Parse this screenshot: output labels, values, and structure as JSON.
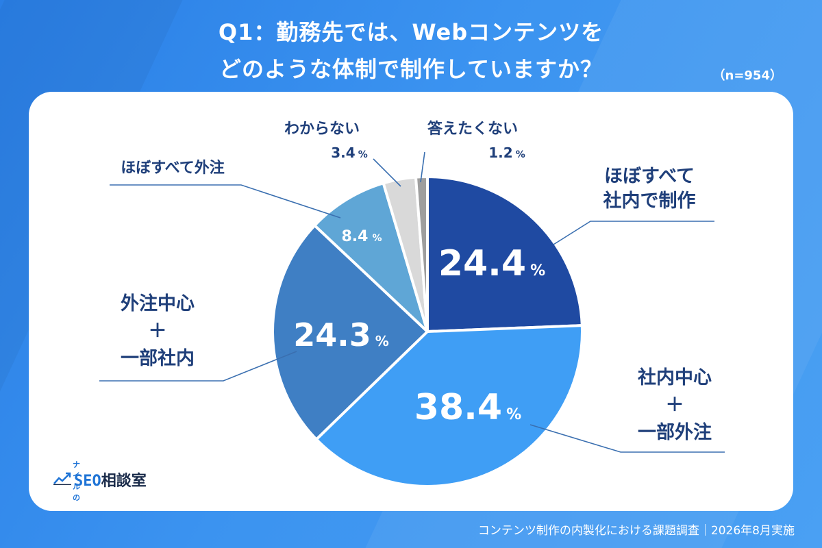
{
  "title": {
    "line1": "Q1：勤務先では、Webコンテンツを",
    "line2": "どのような体制で制作していますか？"
  },
  "sample_size": "（n=954）",
  "footer": "コンテンツ制作の内製化における課題調査｜2026年8月実施",
  "logo": {
    "small": "ナイルの",
    "seo": "SEO",
    "rest": "相談室"
  },
  "colors": {
    "background": "#3a8ff0",
    "card": "#ffffff",
    "label_text": "#1f3f7a",
    "leader_line": "#3a6fb0"
  },
  "chart_data": {
    "type": "pie",
    "unit": "%",
    "start_angle_deg": 0,
    "direction": "clockwise",
    "slices": [
      {
        "label_lines": [
          "ほぼすべて",
          "社内で制作"
        ],
        "value": 24.4,
        "value_text": "24.4",
        "color": "#1f4aa2"
      },
      {
        "label_lines": [
          "社内中心",
          "＋",
          "一部外注"
        ],
        "value": 38.4,
        "value_text": "38.4",
        "color": "#3f9ef5"
      },
      {
        "label_lines": [
          "外注中心",
          "＋",
          "一部社内"
        ],
        "value": 24.3,
        "value_text": "24.3",
        "color": "#3f7fc4"
      },
      {
        "label_lines": [
          "ほぼすべて外注"
        ],
        "value": 8.4,
        "value_text": "8.4",
        "color": "#5fa6d6"
      },
      {
        "label_lines": [
          "わからない"
        ],
        "value": 3.4,
        "value_text": "3.4",
        "color": "#d9d9d9"
      },
      {
        "label_lines": [
          "答えたくない"
        ],
        "value": 1.2,
        "value_text": "1.2",
        "color": "#9e9e9e"
      }
    ]
  }
}
